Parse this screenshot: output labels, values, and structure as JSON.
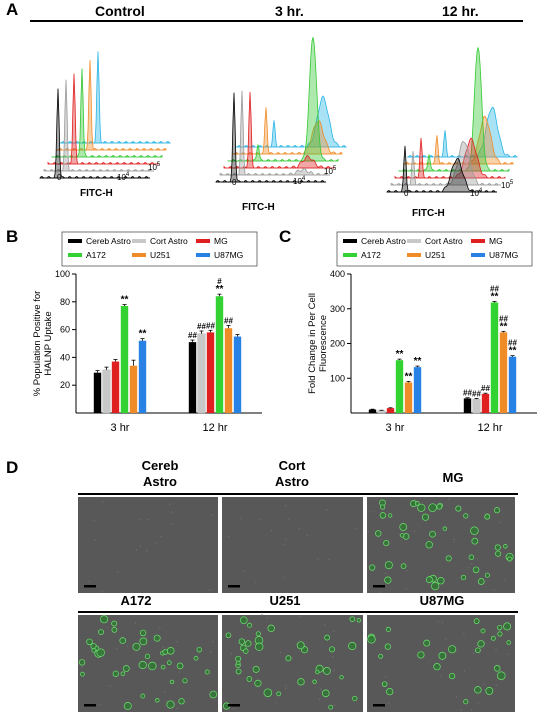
{
  "panel_a": {
    "letter": "A",
    "groups": [
      {
        "label": "Control",
        "axis": "FITC-H",
        "tick0": "0",
        "tick4": "10",
        "tick4exp": "4",
        "tick5": "10",
        "tick5exp": "5"
      },
      {
        "label": "3 hr.",
        "axis": "FITC-H",
        "tick0": "0",
        "tick4": "10",
        "tick4exp": "4",
        "tick5": "10",
        "tick5exp": "5"
      },
      {
        "label": "12 hr.",
        "axis": "FITC-H",
        "tick0": "0",
        "tick4": "10",
        "tick4exp": "4",
        "tick5": "10",
        "tick5exp": "5"
      }
    ],
    "series_colors": [
      "#000000",
      "#9a9a9a",
      "#e02020",
      "#32c832",
      "#f08c28",
      "#28b4e6"
    ]
  },
  "legend": {
    "items": [
      {
        "name": "Cereb Astro",
        "color": "#000000"
      },
      {
        "name": "Cort Astro",
        "color": "#c8c8c8"
      },
      {
        "name": "MG",
        "color": "#e02020"
      },
      {
        "name": "A172",
        "color": "#32d232"
      },
      {
        "name": "U251",
        "color": "#f08c28"
      },
      {
        "name": "U87MG",
        "color": "#2882e6"
      }
    ]
  },
  "chart_data": [
    {
      "type": "bar",
      "panel": "B",
      "ylabel_line1": "% Population Positive for",
      "ylabel_line2": "HALNP Uptake",
      "xlabel": "",
      "ylim": [
        0,
        100
      ],
      "yticks": [
        20,
        40,
        60,
        80,
        100
      ],
      "categories": [
        "3 hr",
        "12 hr"
      ],
      "series": [
        {
          "name": "Cereb Astro",
          "values": [
            29,
            51
          ],
          "err": [
            1.5,
            1.5
          ]
        },
        {
          "name": "Cort Astro",
          "values": [
            31,
            57
          ],
          "err": [
            2,
            2
          ]
        },
        {
          "name": "MG",
          "values": [
            37,
            58
          ],
          "err": [
            1.5,
            1.5
          ]
        },
        {
          "name": "A172",
          "values": [
            77,
            84
          ],
          "err": [
            1,
            1.5
          ]
        },
        {
          "name": "U251",
          "values": [
            34,
            61
          ],
          "err": [
            4,
            2
          ]
        },
        {
          "name": "U87MG",
          "values": [
            52,
            55
          ],
          "err": [
            1.5,
            1.5
          ]
        }
      ],
      "annotations": [
        [
          "",
          "",
          "",
          "**",
          "",
          "**"
        ],
        [
          "##",
          "##",
          "##",
          "#|**",
          "##",
          ""
        ]
      ]
    },
    {
      "type": "bar",
      "panel": "C",
      "ylabel_line1": "Fold Change in Per Cell",
      "ylabel_line2": "Fluorescence",
      "xlabel": "",
      "ylim": [
        0,
        400
      ],
      "yticks": [
        100,
        200,
        300,
        400
      ],
      "categories": [
        "3 hr",
        "12 hr"
      ],
      "series": [
        {
          "name": "Cereb Astro",
          "values": [
            10,
            42
          ],
          "err": [
            1,
            2
          ]
        },
        {
          "name": "Cort Astro",
          "values": [
            7,
            40
          ],
          "err": [
            1,
            2
          ]
        },
        {
          "name": "MG",
          "values": [
            14,
            55
          ],
          "err": [
            1,
            2
          ]
        },
        {
          "name": "A172",
          "values": [
            152,
            318
          ],
          "err": [
            3,
            3
          ]
        },
        {
          "name": "U251",
          "values": [
            88,
            232
          ],
          "err": [
            3,
            3
          ]
        },
        {
          "name": "U87MG",
          "values": [
            132,
            162
          ],
          "err": [
            3,
            3
          ]
        }
      ],
      "annotations": [
        [
          "",
          "",
          "",
          "**",
          "**",
          "**"
        ],
        [
          "##",
          "##",
          "##",
          "##|**",
          "##|**",
          "##|**"
        ]
      ]
    }
  ],
  "panel_d": {
    "letter": "D",
    "labels": [
      {
        "line1": "Cereb",
        "line2": "Astro"
      },
      {
        "line1": "Cort",
        "line2": "Astro"
      },
      {
        "line1": "MG",
        "line2": ""
      },
      {
        "line1": "A172",
        "line2": ""
      },
      {
        "line1": "U251",
        "line2": ""
      },
      {
        "line1": "U87MG",
        "line2": ""
      }
    ],
    "cell_counts": [
      0,
      0,
      45,
      40,
      38,
      28
    ]
  },
  "letters": {
    "b": "B",
    "c": "C"
  }
}
